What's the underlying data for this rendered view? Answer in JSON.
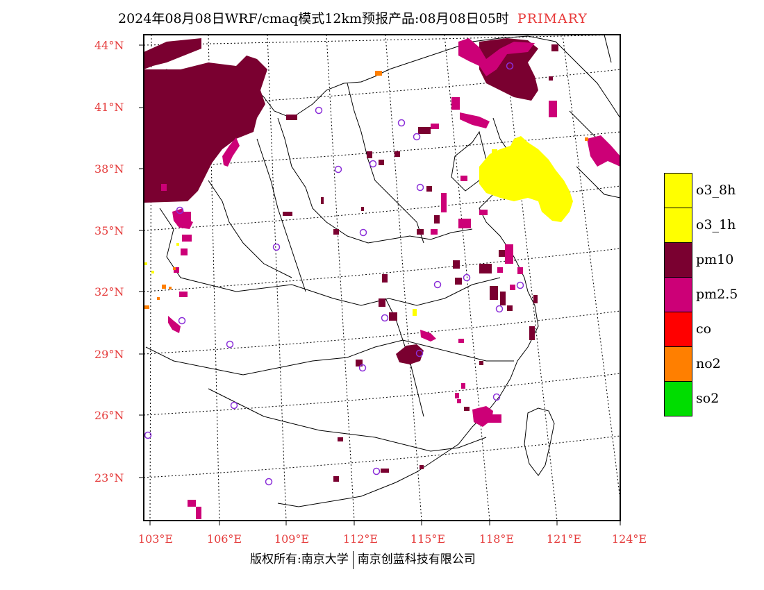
{
  "title": {
    "main": "2024年08月08日WRF/cmaq模式12km预报产品:08月08日05时",
    "tag": "PRIMARY"
  },
  "map": {
    "lat_labels": [
      "44°N",
      "41°N",
      "38°N",
      "35°N",
      "32°N",
      "29°N",
      "26°N",
      "23°N"
    ],
    "lon_labels": [
      "103°E",
      "106°E",
      "109°E",
      "112°E",
      "115°E",
      "118°E",
      "121°E",
      "124°E"
    ],
    "pollution_legend": [
      {
        "label": "o3_8h",
        "color": "#ffff00"
      },
      {
        "label": "o3_1h",
        "color": "#ffff00"
      },
      {
        "label": "pm10",
        "color": "#7a0030"
      },
      {
        "label": "pm2.5",
        "color": "#cc0077"
      },
      {
        "label": "co",
        "color": "#ff0000"
      },
      {
        "label": "no2",
        "color": "#ff7f00"
      },
      {
        "label": "so2",
        "color": "#00dd00"
      }
    ],
    "city_marker_color": "#8b2fd8"
  },
  "footer": {
    "left": "版权所有:南京大学",
    "right": "南京创蓝科技有限公司"
  }
}
